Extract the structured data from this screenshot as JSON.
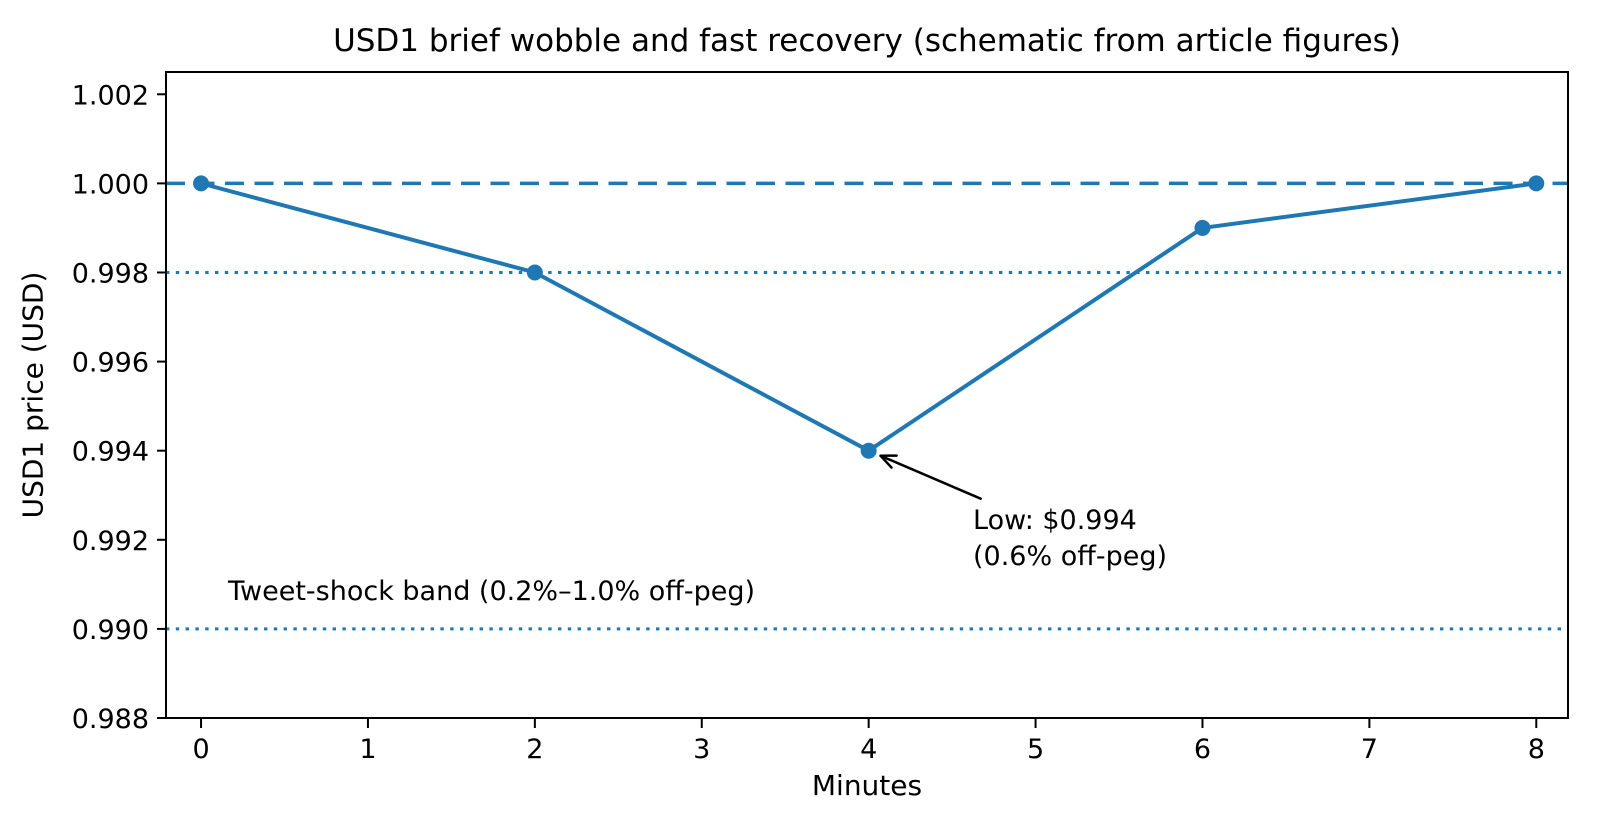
{
  "chart_data": {
    "type": "line",
    "title": "USD1 brief wobble and fast recovery (schematic from article figures)",
    "xlabel": "Minutes",
    "ylabel": "USD1 price (USD)",
    "x": [
      0,
      2,
      4,
      6,
      8
    ],
    "y": [
      1.0,
      0.998,
      0.994,
      0.999,
      1.0
    ],
    "line_color": "#1f77b4",
    "marker": "circle",
    "xticks": [
      0,
      1,
      2,
      3,
      4,
      5,
      6,
      7,
      8
    ],
    "xtick_labels": [
      "0",
      "1",
      "2",
      "3",
      "4",
      "5",
      "6",
      "7",
      "8"
    ],
    "yticks": [
      0.988,
      0.99,
      0.992,
      0.994,
      0.996,
      0.998,
      1.0,
      1.002
    ],
    "ytick_labels": [
      "0.988",
      "0.990",
      "0.992",
      "0.994",
      "0.996",
      "0.998",
      "1.000",
      "1.002"
    ],
    "xlim": [
      -0.21,
      8.19
    ],
    "ylim": [
      0.988,
      1.0025
    ],
    "grid": false,
    "legend": false,
    "reference_lines": [
      {
        "y": 1.0,
        "style": "dashed"
      },
      {
        "y": 0.998,
        "style": "dotted"
      },
      {
        "y": 0.99,
        "style": "dotted"
      }
    ],
    "annotations": {
      "low": {
        "line1": "Low: $0.994",
        "line2": "(0.6% off-peg)",
        "target_x": 4,
        "target_y": 0.994
      },
      "band_label": "Tweet-shock band (0.2%–1.0% off-peg)"
    }
  }
}
